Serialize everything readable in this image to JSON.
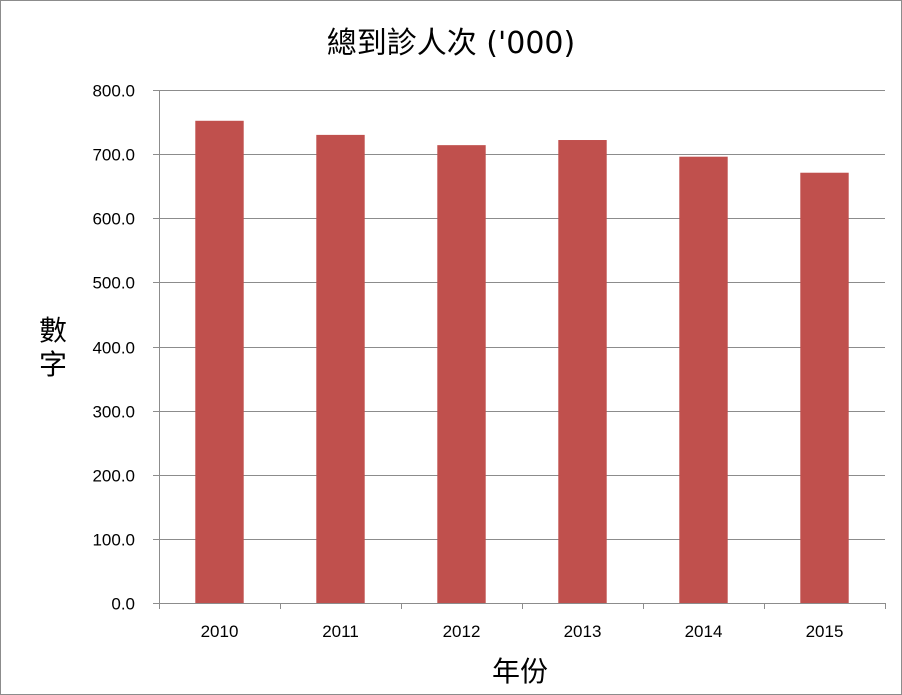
{
  "chart_data": {
    "type": "bar",
    "title": "總到診人次 ('000)",
    "xlabel": "年份",
    "ylabel": "數字",
    "categories": [
      "2010",
      "2011",
      "2012",
      "2013",
      "2014",
      "2015"
    ],
    "values": [
      752.0,
      730.0,
      714.0,
      722.0,
      696.0,
      671.0
    ],
    "ylim": [
      0,
      800
    ],
    "yticks": [
      "0.0",
      "100.0",
      "200.0",
      "300.0",
      "400.0",
      "500.0",
      "600.0",
      "700.0",
      "800.0"
    ],
    "bar_color": "#c0504d",
    "grid": true,
    "legend": "none"
  }
}
